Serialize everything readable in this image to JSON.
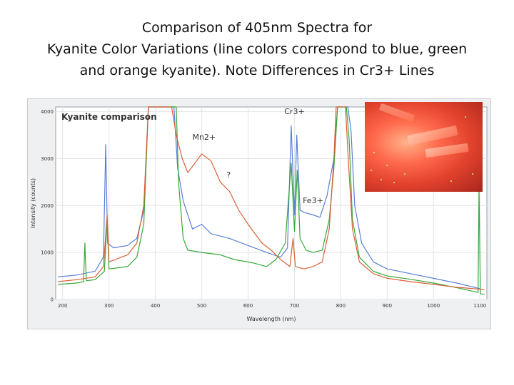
{
  "slide": {
    "title_lines": [
      "Comparison of 405nm Spectra for",
      "Kyanite Color Variations (line colors correspond to blue, green",
      "and orange kyanite). Note Differences in Cr3+ Lines"
    ]
  },
  "chart_data": {
    "type": "line",
    "title": "Kyanite comparison",
    "xlabel": "Wavelength (nm)",
    "ylabel": "Intensity (counts)",
    "xlim": [
      185,
      1115
    ],
    "ylim": [
      0,
      4100
    ],
    "x_ticks": [
      200,
      300,
      400,
      500,
      600,
      700,
      800,
      900,
      1000,
      1100
    ],
    "y_ticks": [
      0,
      1000,
      2000,
      3000,
      4000
    ],
    "grid": true,
    "annotations": [
      {
        "text": "Mn2+",
        "x": 505,
        "y": 3400
      },
      {
        "text": "?",
        "x": 558,
        "y": 2600
      },
      {
        "text": "Cr3+",
        "x": 700,
        "y": 3950
      },
      {
        "text": "Fe3+",
        "x": 740,
        "y": 2050
      }
    ],
    "series": [
      {
        "color": "#5a7fd6",
        "points": [
          [
            190,
            480
          ],
          [
            230,
            520
          ],
          [
            270,
            600
          ],
          [
            288,
            900
          ],
          [
            293,
            3300
          ],
          [
            297,
            1200
          ],
          [
            310,
            1100
          ],
          [
            340,
            1150
          ],
          [
            360,
            1300
          ],
          [
            375,
            1900
          ],
          [
            385,
            4100
          ],
          [
            440,
            4100
          ],
          [
            448,
            2800
          ],
          [
            460,
            2100
          ],
          [
            480,
            1500
          ],
          [
            500,
            1600
          ],
          [
            520,
            1400
          ],
          [
            560,
            1300
          ],
          [
            600,
            1150
          ],
          [
            640,
            1000
          ],
          [
            670,
            900
          ],
          [
            685,
            1100
          ],
          [
            693,
            3700
          ],
          [
            700,
            1800
          ],
          [
            705,
            3500
          ],
          [
            712,
            1900
          ],
          [
            722,
            1850
          ],
          [
            740,
            1800
          ],
          [
            755,
            1750
          ],
          [
            770,
            2200
          ],
          [
            785,
            3000
          ],
          [
            793,
            4100
          ],
          [
            815,
            4100
          ],
          [
            822,
            3600
          ],
          [
            830,
            2000
          ],
          [
            845,
            1200
          ],
          [
            870,
            800
          ],
          [
            900,
            650
          ],
          [
            950,
            550
          ],
          [
            1000,
            450
          ],
          [
            1050,
            350
          ],
          [
            1100,
            230
          ]
        ]
      },
      {
        "color": "#36a83a",
        "points": [
          [
            190,
            320
          ],
          [
            230,
            350
          ],
          [
            245,
            380
          ],
          [
            248,
            1200
          ],
          [
            251,
            400
          ],
          [
            270,
            420
          ],
          [
            290,
            600
          ],
          [
            296,
            1700
          ],
          [
            300,
            650
          ],
          [
            340,
            700
          ],
          [
            360,
            900
          ],
          [
            375,
            1600
          ],
          [
            385,
            4100
          ],
          [
            445,
            4100
          ],
          [
            450,
            2500
          ],
          [
            460,
            1300
          ],
          [
            470,
            1050
          ],
          [
            500,
            1000
          ],
          [
            540,
            950
          ],
          [
            570,
            850
          ],
          [
            610,
            780
          ],
          [
            640,
            700
          ],
          [
            660,
            850
          ],
          [
            680,
            1200
          ],
          [
            693,
            2900
          ],
          [
            700,
            1450
          ],
          [
            706,
            2750
          ],
          [
            712,
            1300
          ],
          [
            725,
            1050
          ],
          [
            740,
            1000
          ],
          [
            760,
            1050
          ],
          [
            775,
            1700
          ],
          [
            785,
            2800
          ],
          [
            793,
            4100
          ],
          [
            812,
            4100
          ],
          [
            818,
            3400
          ],
          [
            825,
            1700
          ],
          [
            840,
            900
          ],
          [
            870,
            600
          ],
          [
            900,
            500
          ],
          [
            950,
            430
          ],
          [
            1000,
            350
          ],
          [
            1050,
            250
          ],
          [
            1096,
            150
          ],
          [
            1098,
            2400
          ],
          [
            1101,
            120
          ],
          [
            1110,
            110
          ]
        ]
      },
      {
        "color": "#d9603a",
        "points": [
          [
            190,
            380
          ],
          [
            230,
            420
          ],
          [
            270,
            480
          ],
          [
            288,
            700
          ],
          [
            296,
            1800
          ],
          [
            300,
            800
          ],
          [
            340,
            950
          ],
          [
            360,
            1200
          ],
          [
            375,
            2000
          ],
          [
            385,
            4100
          ],
          [
            435,
            4100
          ],
          [
            445,
            3500
          ],
          [
            458,
            3000
          ],
          [
            470,
            2700
          ],
          [
            485,
            2900
          ],
          [
            500,
            3100
          ],
          [
            520,
            2950
          ],
          [
            540,
            2500
          ],
          [
            560,
            2300
          ],
          [
            580,
            1900
          ],
          [
            600,
            1600
          ],
          [
            630,
            1200
          ],
          [
            650,
            1050
          ],
          [
            670,
            850
          ],
          [
            690,
            700
          ],
          [
            697,
            1300
          ],
          [
            702,
            700
          ],
          [
            720,
            650
          ],
          [
            740,
            700
          ],
          [
            760,
            800
          ],
          [
            775,
            1500
          ],
          [
            785,
            3000
          ],
          [
            790,
            4100
          ],
          [
            810,
            4100
          ],
          [
            816,
            3000
          ],
          [
            825,
            1500
          ],
          [
            840,
            800
          ],
          [
            870,
            550
          ],
          [
            900,
            450
          ],
          [
            950,
            380
          ],
          [
            1000,
            320
          ],
          [
            1050,
            260
          ],
          [
            1110,
            210
          ]
        ]
      }
    ]
  }
}
